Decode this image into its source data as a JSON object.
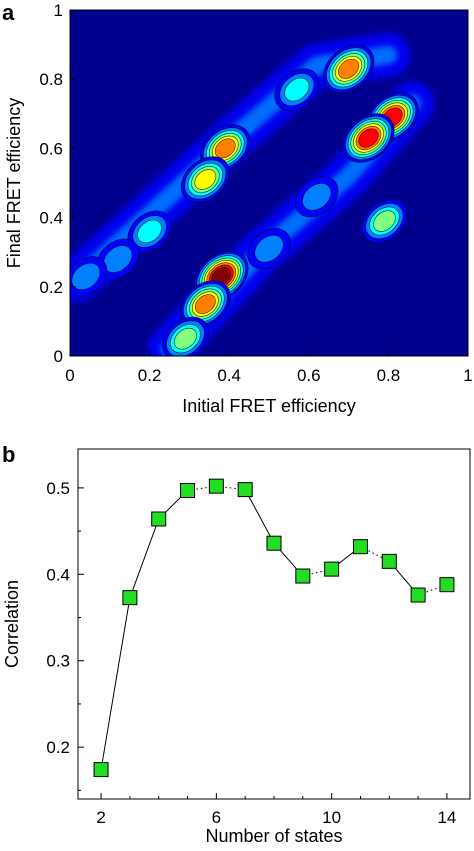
{
  "panels": [
    {
      "label": "a"
    },
    {
      "label": "b"
    }
  ],
  "chart_data": [
    {
      "type": "heatmap",
      "title": "",
      "xlabel": "Initial FRET efficiency",
      "ylabel": "Final FRET efficiency",
      "xlim": [
        0,
        1
      ],
      "ylim": [
        0,
        1
      ],
      "x_ticks": [
        0,
        0.2,
        0.4,
        0.6,
        0.8,
        1
      ],
      "x_tick_labels": [
        "0",
        "0.2",
        "0.4",
        "0.6",
        "0.8",
        "1"
      ],
      "y_ticks": [
        0,
        0.2,
        0.4,
        0.6,
        0.8,
        1
      ],
      "y_tick_labels": [
        "0",
        "0.2",
        "0.4",
        "0.6",
        "0.8",
        "1"
      ],
      "colormap": [
        "#00008f",
        "#0000ff",
        "#0080ff",
        "#00ffff",
        "#80ff80",
        "#ffff00",
        "#ff8000",
        "#ff0000",
        "#800000"
      ],
      "contours": true,
      "peaks": [
        {
          "x": 0.38,
          "y": 0.23,
          "intensity": 1.0
        },
        {
          "x": 0.34,
          "y": 0.15,
          "intensity": 0.75
        },
        {
          "x": 0.29,
          "y": 0.05,
          "intensity": 0.5
        },
        {
          "x": 0.81,
          "y": 0.69,
          "intensity": 0.9
        },
        {
          "x": 0.75,
          "y": 0.63,
          "intensity": 0.85
        },
        {
          "x": 0.7,
          "y": 0.83,
          "intensity": 0.8
        },
        {
          "x": 0.39,
          "y": 0.6,
          "intensity": 0.75
        },
        {
          "x": 0.34,
          "y": 0.51,
          "intensity": 0.65
        },
        {
          "x": 0.79,
          "y": 0.39,
          "intensity": 0.45
        },
        {
          "x": 0.57,
          "y": 0.77,
          "intensity": 0.4
        },
        {
          "x": 0.2,
          "y": 0.36,
          "intensity": 0.35
        },
        {
          "x": 0.12,
          "y": 0.28,
          "intensity": 0.3
        },
        {
          "x": 0.5,
          "y": 0.31,
          "intensity": 0.3
        },
        {
          "x": 0.62,
          "y": 0.46,
          "intensity": 0.3
        },
        {
          "x": 0.04,
          "y": 0.23,
          "intensity": 0.25
        }
      ]
    },
    {
      "type": "line",
      "title": "",
      "xlabel": "Number of states",
      "ylabel": "Correlation",
      "xlim": [
        1.2,
        14.8
      ],
      "ylim": [
        0.14,
        0.545
      ],
      "x_ticks": [
        2,
        6,
        10,
        14
      ],
      "x_tick_labels": [
        "2",
        "6",
        "10",
        "14"
      ],
      "y_ticks": [
        0.2,
        0.3,
        0.4,
        0.5
      ],
      "y_tick_labels": [
        "0.2",
        "0.3",
        "0.4",
        "0.5"
      ],
      "marker": "square",
      "marker_color": "#22dd22",
      "series": [
        {
          "x": [
            2,
            3,
            4,
            5,
            6,
            7,
            8,
            9,
            10,
            11,
            12,
            13,
            14
          ],
          "values": [
            0.174,
            0.373,
            0.464,
            0.497,
            0.502,
            0.498,
            0.436,
            0.398,
            0.406,
            0.432,
            0.415,
            0.376,
            0.388
          ],
          "line_style": [
            "solid",
            "solid",
            "solid",
            "dotted",
            "dotted",
            "solid",
            "solid",
            "dotted",
            "solid",
            "dotted",
            "solid",
            "dotted"
          ]
        }
      ]
    }
  ]
}
